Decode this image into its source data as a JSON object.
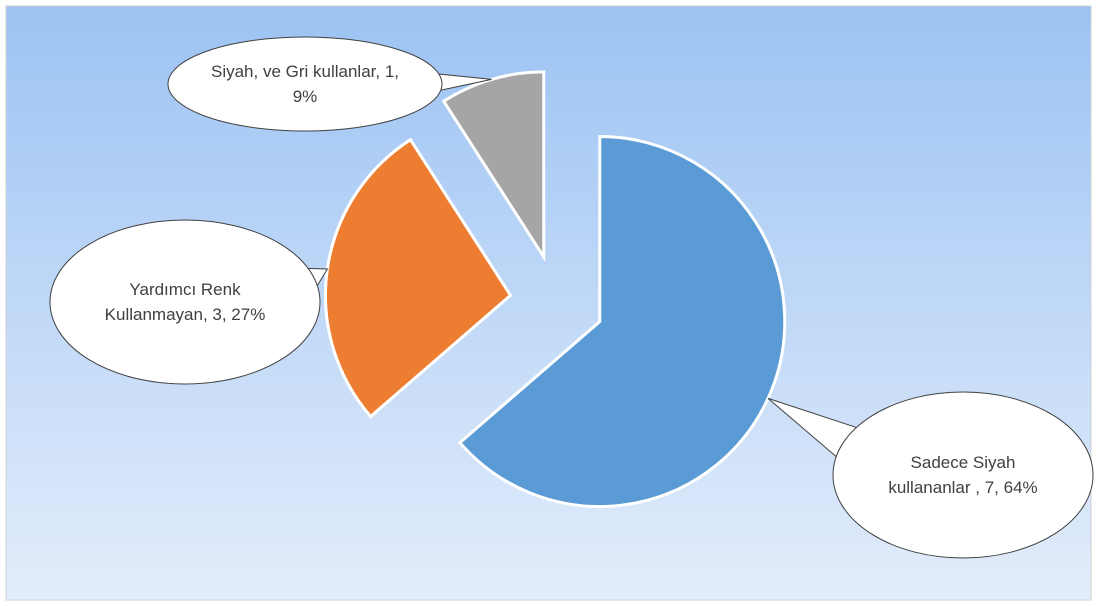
{
  "chart_data": {
    "type": "pie",
    "values": [
      7,
      3,
      1
    ],
    "value_labels": [
      "Sadece Siyah kullananlar , 7, 64%",
      "Yardımcı Renk Kullanmayan, 3, 27%",
      "Siyah, ve Gri kullanlar, 1, 9%"
    ],
    "colors": [
      "#5b9bd5",
      "#ed7d31",
      "#a5a5a5"
    ]
  }
}
